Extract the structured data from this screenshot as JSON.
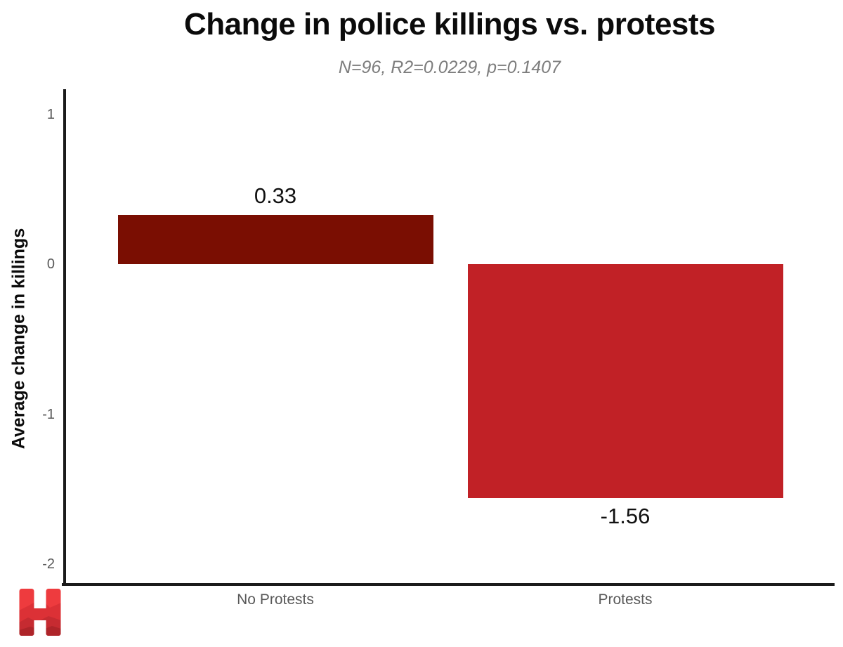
{
  "header": {
    "title": "Change in police killings vs. protests",
    "subtitle": "N=96, R2=0.0229, p=0.1407"
  },
  "chart_data": {
    "type": "bar",
    "categories": [
      "No Protests",
      "Protests"
    ],
    "values": [
      0.33,
      -1.56
    ],
    "bar_labels": [
      "0.33",
      "-1.56"
    ],
    "bar_colors": [
      "#7A0E02",
      "#C12126"
    ],
    "title": "Change in police killings vs. protests",
    "subtitle": "N=96, R2=0.0229, p=0.1407",
    "xlabel": "",
    "ylabel": "Average change in killings",
    "ylim": [
      -2.15,
      1.17
    ],
    "yticks": [
      1,
      0,
      -1,
      -2
    ],
    "grid": false,
    "legend": false,
    "axis_color": "#1b1b1b",
    "tick_text_color": "#595959",
    "value_text_color": "#111111"
  },
  "logo": {
    "name": "huffpost-h-logo",
    "base_color": "#EE3B3E",
    "wave_colors": [
      "#DC3136",
      "#C62B31",
      "#AE2429"
    ]
  }
}
